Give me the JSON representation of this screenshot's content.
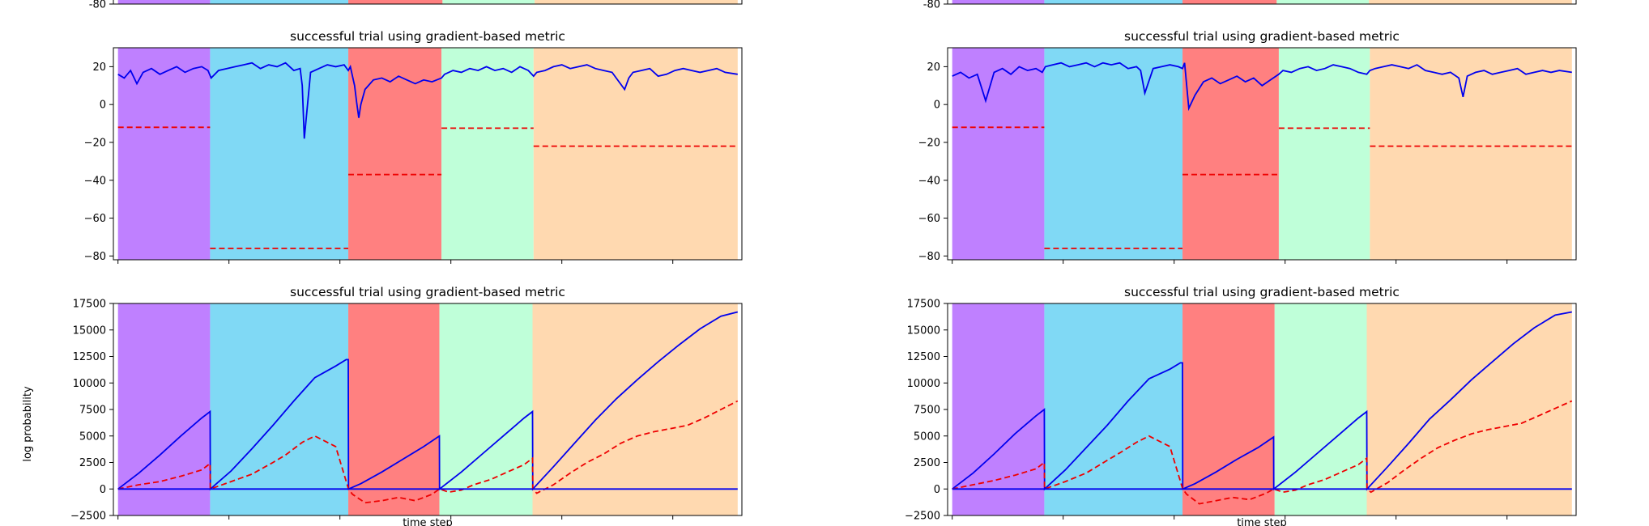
{
  "figure": {
    "background": "#ffffff"
  },
  "phase_colors": [
    "#bf80ff",
    "#80d9f5",
    "#ff8080",
    "#bfffd9",
    "#ffd9b0"
  ],
  "line_colors": {
    "solid": "#0000ee",
    "dashed": "#ee0000"
  },
  "chart_data": [
    {
      "type": "line",
      "panel": "top-left-partial",
      "title": "",
      "xlabel": "",
      "ylabel": "",
      "ylim": [
        -80,
        30
      ],
      "yticks": [
        "-80"
      ],
      "xlim": [
        -22,
        2980
      ],
      "phases": [
        [
          0,
          440
        ],
        [
          440,
          1100
        ],
        [
          1100,
          1550
        ],
        [
          1550,
          1990
        ],
        [
          1990,
          2960
        ]
      ]
    },
    {
      "type": "line",
      "panel": "top-right-partial",
      "title": "",
      "xlabel": "",
      "ylabel": "",
      "ylim": [
        -80,
        30
      ],
      "yticks": [
        "-80"
      ],
      "xlim": [
        -22,
        2980
      ],
      "phases": [
        [
          0,
          440
        ],
        [
          440,
          1100
        ],
        [
          1100,
          1550
        ],
        [
          1550,
          1990
        ],
        [
          1990,
          2960
        ]
      ]
    },
    {
      "type": "line",
      "panel": "metric-left",
      "title": "successful trial using gradient-based metric",
      "xlabel": "",
      "ylabel": "",
      "ylim": [
        -82,
        30
      ],
      "yticks": [
        "20",
        "0",
        "−20",
        "−40",
        "−60",
        "−80"
      ],
      "ytick_values": [
        20,
        0,
        -20,
        -40,
        -60,
        -80
      ],
      "xlim": [
        -22,
        2980
      ],
      "xticks": [
        0,
        530,
        1060,
        1590,
        2120,
        2650
      ],
      "phases": [
        [
          0,
          440
        ],
        [
          440,
          1100
        ],
        [
          1100,
          1545
        ],
        [
          1545,
          1985
        ],
        [
          1985,
          2960
        ]
      ],
      "series": [
        {
          "style": "solid",
          "x": [
            0,
            30,
            60,
            90,
            120,
            160,
            200,
            240,
            280,
            320,
            360,
            400,
            430,
            445,
            480,
            520,
            560,
            600,
            640,
            680,
            720,
            760,
            800,
            840,
            870,
            880,
            890,
            920,
            960,
            1000,
            1040,
            1080,
            1100,
            1110,
            1130,
            1140,
            1150,
            1160,
            1180,
            1220,
            1260,
            1300,
            1340,
            1380,
            1420,
            1460,
            1500,
            1545,
            1560,
            1600,
            1640,
            1680,
            1720,
            1760,
            1800,
            1840,
            1880,
            1920,
            1960,
            1985,
            2000,
            2040,
            2080,
            2120,
            2160,
            2200,
            2240,
            2280,
            2320,
            2360,
            2420,
            2440,
            2460,
            2500,
            2540,
            2580,
            2620,
            2660,
            2700,
            2740,
            2780,
            2820,
            2860,
            2900,
            2960
          ],
          "y": [
            16,
            14,
            18,
            11,
            17,
            19,
            16,
            18,
            20,
            17,
            19,
            20,
            18,
            14,
            18,
            19,
            20,
            21,
            22,
            19,
            21,
            20,
            22,
            18,
            19,
            10,
            -18,
            17,
            19,
            21,
            20,
            21,
            18,
            20,
            10,
            1,
            -7,
            0,
            8,
            13,
            14,
            12,
            15,
            13,
            11,
            13,
            12,
            14,
            16,
            18,
            17,
            19,
            18,
            20,
            18,
            19,
            17,
            20,
            18,
            15,
            17,
            18,
            20,
            21,
            19,
            20,
            21,
            19,
            18,
            17,
            8,
            14,
            17,
            18,
            19,
            15,
            16,
            18,
            19,
            18,
            17,
            18,
            19,
            17,
            16
          ]
        },
        {
          "style": "dashed",
          "segments": [
            {
              "x": [
                0,
                440
              ],
              "y": [
                -12,
                -12
              ]
            },
            {
              "x": [
                440,
                1100
              ],
              "y": [
                -76,
                -76
              ]
            },
            {
              "x": [
                1100,
                1545
              ],
              "y": [
                -37,
                -37
              ]
            },
            {
              "x": [
                1545,
                1985
              ],
              "y": [
                -12.5,
                -12.5
              ]
            },
            {
              "x": [
                1985,
                2960
              ],
              "y": [
                -22,
                -22
              ]
            }
          ]
        }
      ]
    },
    {
      "type": "line",
      "panel": "metric-right",
      "title": "successful trial using gradient-based metric",
      "xlabel": "",
      "ylabel": "",
      "ylim": [
        -82,
        30
      ],
      "yticks": [
        "20",
        "0",
        "−20",
        "−40",
        "−60",
        "−80"
      ],
      "ytick_values": [
        20,
        0,
        -20,
        -40,
        -60,
        -80
      ],
      "xlim": [
        -22,
        2980
      ],
      "xticks": [
        0,
        530,
        1060,
        1590,
        2120,
        2650
      ],
      "phases": [
        [
          0,
          440
        ],
        [
          440,
          1100
        ],
        [
          1100,
          1560
        ],
        [
          1560,
          1995
        ],
        [
          1995,
          2960
        ]
      ],
      "series": [
        {
          "style": "solid",
          "x": [
            0,
            40,
            80,
            120,
            160,
            200,
            240,
            280,
            320,
            360,
            400,
            430,
            445,
            480,
            520,
            560,
            600,
            640,
            680,
            720,
            760,
            800,
            840,
            880,
            900,
            920,
            960,
            1000,
            1040,
            1080,
            1100,
            1110,
            1120,
            1130,
            1160,
            1200,
            1240,
            1280,
            1320,
            1360,
            1400,
            1440,
            1480,
            1520,
            1560,
            1580,
            1620,
            1660,
            1700,
            1740,
            1780,
            1820,
            1860,
            1900,
            1940,
            1980,
            1995,
            2020,
            2060,
            2100,
            2140,
            2180,
            2220,
            2260,
            2300,
            2340,
            2380,
            2420,
            2440,
            2460,
            2500,
            2540,
            2580,
            2620,
            2660,
            2700,
            2740,
            2780,
            2820,
            2860,
            2900,
            2960
          ],
          "y": [
            15,
            17,
            14,
            16,
            2,
            17,
            19,
            16,
            20,
            18,
            19,
            17,
            20,
            21,
            22,
            20,
            21,
            22,
            20,
            22,
            21,
            22,
            19,
            20,
            18,
            6,
            19,
            20,
            21,
            20,
            19,
            22,
            10,
            -2,
            5,
            12,
            14,
            11,
            13,
            15,
            12,
            14,
            10,
            13,
            16,
            18,
            17,
            19,
            20,
            18,
            19,
            21,
            20,
            19,
            17,
            16,
            18,
            19,
            20,
            21,
            20,
            19,
            21,
            18,
            17,
            16,
            17,
            14,
            4,
            15,
            17,
            18,
            16,
            17,
            18,
            19,
            16,
            17,
            18,
            17,
            18,
            17
          ]
        },
        {
          "style": "dashed",
          "segments": [
            {
              "x": [
                0,
                440
              ],
              "y": [
                -12,
                -12
              ]
            },
            {
              "x": [
                440,
                1100
              ],
              "y": [
                -76,
                -76
              ]
            },
            {
              "x": [
                1100,
                1560
              ],
              "y": [
                -37,
                -37
              ]
            },
            {
              "x": [
                1560,
                1995
              ],
              "y": [
                -12.5,
                -12.5
              ]
            },
            {
              "x": [
                1995,
                2960
              ],
              "y": [
                -22,
                -22
              ]
            }
          ]
        }
      ]
    },
    {
      "type": "line",
      "panel": "logprob-left",
      "title": "successful trial using gradient-based metric",
      "xlabel": "time step",
      "ylabel": "log probability",
      "ylim": [
        -2500,
        17500
      ],
      "yticks": [
        "17500",
        "15000",
        "12500",
        "10000",
        "7500",
        "5000",
        "2500",
        "0",
        "−2500"
      ],
      "ytick_values": [
        17500,
        15000,
        12500,
        10000,
        7500,
        5000,
        2500,
        0,
        -2500
      ],
      "xlim": [
        -22,
        2980
      ],
      "xticks": [
        0,
        530,
        1060,
        1590,
        2120,
        2650
      ],
      "phases": [
        [
          0,
          440
        ],
        [
          440,
          1100
        ],
        [
          1100,
          1535
        ],
        [
          1535,
          1980
        ],
        [
          1980,
          2960
        ]
      ],
      "series": [
        {
          "style": "solid",
          "x": [
            0,
            100,
            200,
            300,
            400,
            440,
            441,
            540,
            640,
            740,
            840,
            940,
            1040,
            1090,
            1100,
            1101,
            1160,
            1260,
            1360,
            1460,
            1535,
            1536,
            1640,
            1740,
            1840,
            1940,
            1980,
            1981,
            2080,
            2180,
            2280,
            2380,
            2480,
            2580,
            2680,
            2780,
            2880,
            2960
          ],
          "y": [
            0,
            1500,
            3200,
            5000,
            6700,
            7300,
            0,
            1700,
            3800,
            6000,
            8300,
            10500,
            11600,
            12200,
            12200,
            0,
            500,
            1600,
            2800,
            4000,
            5000,
            0,
            1600,
            3300,
            5000,
            6700,
            7300,
            0,
            2100,
            4300,
            6500,
            8500,
            10300,
            12000,
            13600,
            15100,
            16300,
            16700
          ]
        },
        {
          "style": "dashed",
          "x": [
            0,
            100,
            200,
            300,
            400,
            440,
            441,
            540,
            640,
            740,
            800,
            880,
            940,
            1040,
            1101,
            1120,
            1180,
            1260,
            1340,
            1420,
            1500,
            1535,
            1536,
            1580,
            1640,
            1700,
            1780,
            1860,
            1940,
            1980,
            1981,
            2000,
            2080,
            2160,
            2240,
            2320,
            2400,
            2480,
            2560,
            2640,
            2720,
            2800,
            2880,
            2960
          ],
          "y": [
            0,
            400,
            700,
            1200,
            1800,
            2400,
            0,
            700,
            1400,
            2500,
            3200,
            4400,
            5000,
            4000,
            0,
            -500,
            -1300,
            -1100,
            -800,
            -1100,
            -500,
            0,
            0,
            -300,
            -100,
            400,
            900,
            1600,
            2300,
            2900,
            0,
            -400,
            400,
            1500,
            2500,
            3300,
            4300,
            5000,
            5400,
            5700,
            6000,
            6700,
            7500,
            8300
          ]
        },
        {
          "style": "solid-flat",
          "x": [
            0,
            2960
          ],
          "y": [
            0,
            0
          ]
        }
      ]
    },
    {
      "type": "line",
      "panel": "logprob-right",
      "title": "successful trial using gradient-based metric",
      "xlabel": "time step",
      "ylabel": "",
      "ylim": [
        -2500,
        17500
      ],
      "yticks": [
        "17500",
        "15000",
        "12500",
        "10000",
        "7500",
        "5000",
        "2500",
        "0",
        "−2500"
      ],
      "ytick_values": [
        17500,
        15000,
        12500,
        10000,
        7500,
        5000,
        2500,
        0,
        -2500
      ],
      "xlim": [
        -22,
        2980
      ],
      "xticks": [
        0,
        530,
        1060,
        1590,
        2120,
        2650
      ],
      "phases": [
        [
          0,
          440
        ],
        [
          440,
          1100
        ],
        [
          1100,
          1540
        ],
        [
          1540,
          1980
        ],
        [
          1980,
          2960
        ]
      ],
      "series": [
        {
          "style": "solid",
          "x": [
            0,
            100,
            200,
            300,
            400,
            440,
            441,
            540,
            640,
            740,
            840,
            940,
            1040,
            1090,
            1100,
            1101,
            1160,
            1260,
            1360,
            1460,
            1535,
            1536,
            1640,
            1740,
            1840,
            1940,
            1980,
            1981,
            2080,
            2180,
            2280,
            2380,
            2480,
            2580,
            2680,
            2780,
            2880,
            2960
          ],
          "y": [
            0,
            1500,
            3300,
            5200,
            6900,
            7500,
            0,
            1800,
            3900,
            6000,
            8300,
            10400,
            11300,
            11900,
            11900,
            0,
            500,
            1600,
            2800,
            3900,
            4900,
            0,
            1600,
            3300,
            5000,
            6700,
            7300,
            0,
            2100,
            4300,
            6600,
            8400,
            10300,
            12000,
            13700,
            15200,
            16400,
            16700
          ]
        },
        {
          "style": "dashed",
          "x": [
            0,
            100,
            200,
            300,
            400,
            440,
            441,
            540,
            640,
            740,
            800,
            880,
            940,
            1040,
            1101,
            1120,
            1180,
            1260,
            1340,
            1420,
            1500,
            1535,
            1536,
            1580,
            1640,
            1700,
            1780,
            1860,
            1940,
            1980,
            1981,
            2000,
            2080,
            2160,
            2240,
            2320,
            2400,
            2480,
            2560,
            2640,
            2720,
            2800,
            2880,
            2960
          ],
          "y": [
            0,
            400,
            800,
            1300,
            1900,
            2500,
            0,
            700,
            1500,
            2700,
            3400,
            4400,
            5000,
            4000,
            0,
            -500,
            -1400,
            -1100,
            -800,
            -1000,
            -400,
            0,
            0,
            -300,
            -100,
            400,
            900,
            1600,
            2300,
            2900,
            0,
            -300,
            600,
            1800,
            2900,
            3900,
            4600,
            5200,
            5600,
            5900,
            6200,
            6900,
            7600,
            8300
          ]
        },
        {
          "style": "solid-flat",
          "x": [
            0,
            2960
          ],
          "y": [
            0,
            0
          ]
        }
      ]
    }
  ]
}
